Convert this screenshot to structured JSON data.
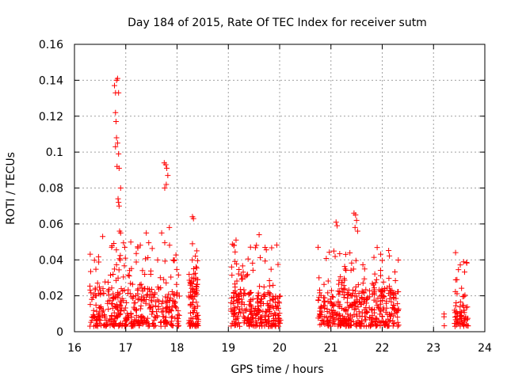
{
  "chart_data": {
    "type": "scatter",
    "title": "Day 184 of 2015, Rate Of TEC Index for receiver sutm",
    "xlabel": "GPS time / hours",
    "ylabel": "ROTI / TECUs",
    "xlim": [
      16,
      24
    ],
    "ylim": [
      0,
      0.16
    ],
    "xticks": [
      16,
      17,
      18,
      19,
      20,
      21,
      22,
      23,
      24
    ],
    "xtick_labels": [
      "16",
      "17",
      "18",
      "19",
      "20",
      "21",
      "22",
      "23",
      "24"
    ],
    "yticks": [
      0,
      0.02,
      0.04,
      0.06,
      0.08,
      0.1,
      0.12,
      0.14,
      0.16
    ],
    "ytick_labels": [
      "0",
      "0.02",
      "0.04",
      "0.06",
      "0.08",
      "0.1",
      "0.12",
      "0.14",
      "0.16"
    ],
    "grid": true,
    "marker": "+",
    "color": "#ff0000",
    "clusters": [
      {
        "x_start": 16.3,
        "x_end": 18.05,
        "y_base_max": 0.024,
        "y_high": 0.05,
        "count": 420
      },
      {
        "x_start": 18.22,
        "x_end": 18.42,
        "y_base_max": 0.03,
        "y_high": 0.045,
        "count": 90
      },
      {
        "x_start": 19.05,
        "x_end": 20.02,
        "y_base_max": 0.022,
        "y_high": 0.05,
        "count": 280
      },
      {
        "x_start": 20.75,
        "x_end": 22.32,
        "y_base_max": 0.024,
        "y_high": 0.047,
        "count": 420
      },
      {
        "x_start": 23.2,
        "x_end": 23.22,
        "y_base_max": 0.012,
        "y_high": 0.012,
        "count": 3
      },
      {
        "x_start": 23.4,
        "x_end": 23.68,
        "y_base_max": 0.015,
        "y_high": 0.04,
        "count": 70
      }
    ],
    "spikes": [
      {
        "x": 16.78,
        "y": 0.137
      },
      {
        "x": 16.8,
        "y": 0.133
      },
      {
        "x": 16.82,
        "y": 0.14
      },
      {
        "x": 16.84,
        "y": 0.141
      },
      {
        "x": 16.86,
        "y": 0.133
      },
      {
        "x": 16.8,
        "y": 0.122
      },
      {
        "x": 16.81,
        "y": 0.117
      },
      {
        "x": 16.82,
        "y": 0.108
      },
      {
        "x": 16.84,
        "y": 0.105
      },
      {
        "x": 16.8,
        "y": 0.103
      },
      {
        "x": 16.86,
        "y": 0.099
      },
      {
        "x": 16.83,
        "y": 0.092
      },
      {
        "x": 16.87,
        "y": 0.091
      },
      {
        "x": 16.9,
        "y": 0.08
      },
      {
        "x": 16.85,
        "y": 0.074
      },
      {
        "x": 16.86,
        "y": 0.072
      },
      {
        "x": 16.87,
        "y": 0.07
      },
      {
        "x": 16.88,
        "y": 0.056
      },
      {
        "x": 16.9,
        "y": 0.055
      },
      {
        "x": 17.75,
        "y": 0.094
      },
      {
        "x": 17.78,
        "y": 0.093
      },
      {
        "x": 17.8,
        "y": 0.091
      },
      {
        "x": 17.82,
        "y": 0.087
      },
      {
        "x": 17.79,
        "y": 0.082
      },
      {
        "x": 17.76,
        "y": 0.08
      },
      {
        "x": 17.85,
        "y": 0.058
      },
      {
        "x": 17.7,
        "y": 0.055
      },
      {
        "x": 18.3,
        "y": 0.064
      },
      {
        "x": 18.32,
        "y": 0.063
      },
      {
        "x": 18.3,
        "y": 0.049
      },
      {
        "x": 21.1,
        "y": 0.061
      },
      {
        "x": 21.12,
        "y": 0.059
      },
      {
        "x": 21.45,
        "y": 0.066
      },
      {
        "x": 21.48,
        "y": 0.065
      },
      {
        "x": 21.5,
        "y": 0.062
      },
      {
        "x": 21.47,
        "y": 0.058
      },
      {
        "x": 21.52,
        "y": 0.056
      },
      {
        "x": 19.6,
        "y": 0.054
      },
      {
        "x": 19.15,
        "y": 0.051
      },
      {
        "x": 16.55,
        "y": 0.053
      },
      {
        "x": 17.4,
        "y": 0.055
      },
      {
        "x": 23.43,
        "y": 0.044
      },
      {
        "x": 20.75,
        "y": 0.047
      }
    ]
  }
}
